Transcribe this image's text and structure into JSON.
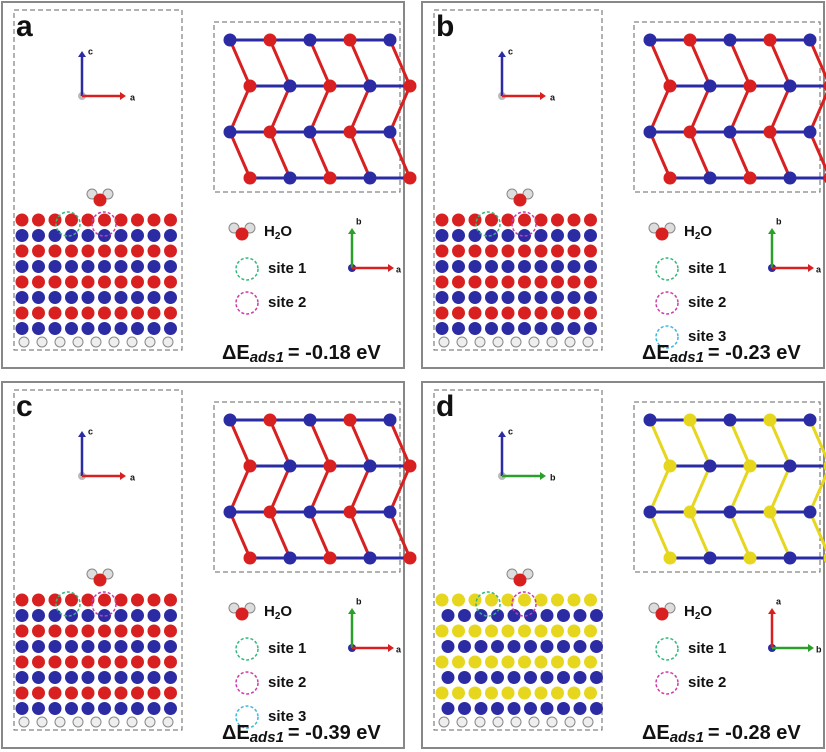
{
  "panels": [
    {
      "label": "a",
      "side_axes": {
        "up": "c",
        "right": "a"
      },
      "top_axes": {
        "up": "b",
        "right": "a"
      },
      "molecule": {
        "main": "H",
        "sub": "2",
        "end": "O"
      },
      "sites": [
        "site 1",
        "site 2"
      ],
      "energy": {
        "symbol": "ΔE",
        "sub": "ads1",
        "text": "= -0.18 eV"
      }
    },
    {
      "label": "b",
      "side_axes": {
        "up": "c",
        "right": "a"
      },
      "top_axes": {
        "up": "b",
        "right": "a"
      },
      "molecule": {
        "main": "H",
        "sub": "2",
        "end": "O"
      },
      "sites": [
        "site 1",
        "site 2",
        "site 3"
      ],
      "energy": {
        "symbol": "ΔE",
        "sub": "ads1",
        "text": "= -0.23 eV"
      }
    },
    {
      "label": "c",
      "side_axes": {
        "up": "c",
        "right": "a"
      },
      "top_axes": {
        "up": "b",
        "right": "a"
      },
      "molecule": {
        "main": "H",
        "sub": "2",
        "end": "O"
      },
      "sites": [
        "site 1",
        "site 2",
        "site 3"
      ],
      "energy": {
        "symbol": "ΔE",
        "sub": "ads1",
        "text": "= -0.39 eV"
      }
    },
    {
      "label": "d",
      "side_axes": {
        "up": "c",
        "right": "b"
      },
      "top_axes": {
        "up": "a",
        "right": "b"
      },
      "molecule": {
        "main": "H",
        "sub": "2",
        "end": "O"
      },
      "sites": [
        "site 1",
        "site 2"
      ],
      "energy": {
        "symbol": "ΔE",
        "sub": "ads1",
        "text": "= -0.28 eV"
      }
    }
  ]
}
